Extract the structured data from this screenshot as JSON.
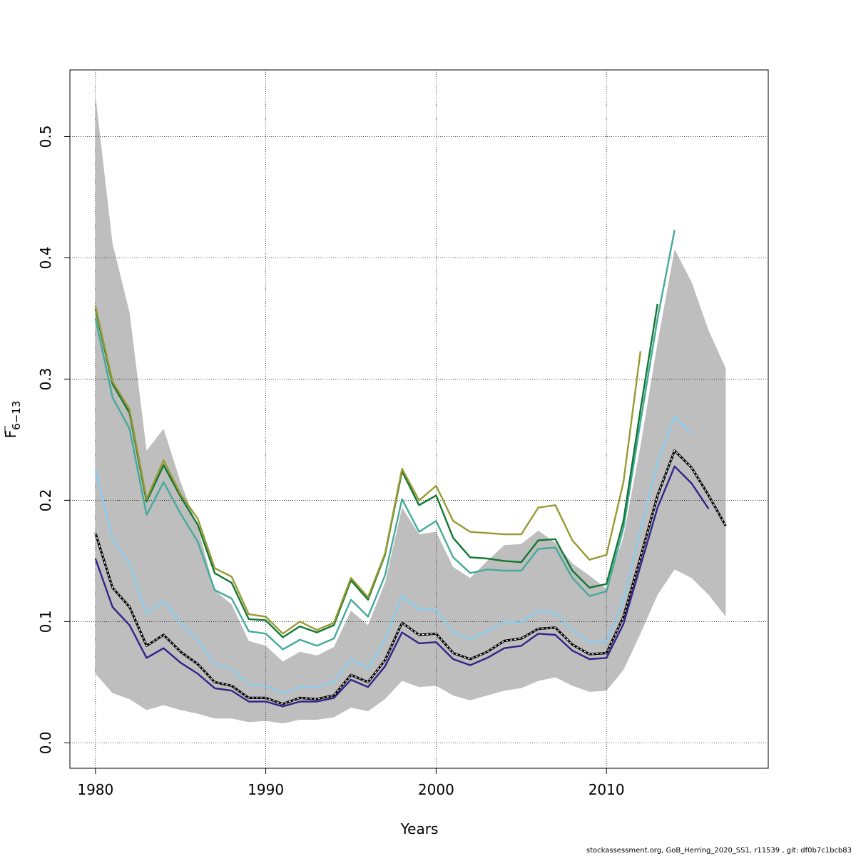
{
  "chart_data": {
    "type": "line",
    "xlabel": "Years",
    "ylabel_base": "F",
    "ylabel_sub": "6−13",
    "xlim": [
      1978.5,
      2019.5
    ],
    "ylim": [
      -0.021,
      0.555
    ],
    "x_ticks": [
      1980,
      1990,
      2000,
      2010
    ],
    "y_ticks": [
      0.0,
      0.1,
      0.2,
      0.3,
      0.4,
      0.5
    ],
    "x_tick_labels": [
      "1980",
      "1990",
      "2000",
      "2010"
    ],
    "y_tick_labels": [
      "0.0",
      "0.1",
      "0.2",
      "0.3",
      "0.4",
      "0.5"
    ],
    "grid": true,
    "confidence_band": {
      "color": "#bebebe",
      "years": [
        1980,
        1981,
        1982,
        1983,
        1984,
        1985,
        1986,
        1987,
        1988,
        1989,
        1990,
        1991,
        1992,
        1993,
        1994,
        1995,
        1996,
        1997,
        1998,
        1999,
        2000,
        2001,
        2002,
        2003,
        2004,
        2005,
        2006,
        2007,
        2008,
        2009,
        2010,
        2011,
        2012,
        2013,
        2014,
        2015,
        2016,
        2017
      ],
      "upper": [
        0.534,
        0.412,
        0.355,
        0.241,
        0.259,
        0.215,
        0.178,
        0.126,
        0.114,
        0.084,
        0.08,
        0.067,
        0.075,
        0.072,
        0.079,
        0.109,
        0.097,
        0.132,
        0.194,
        0.172,
        0.174,
        0.145,
        0.136,
        0.15,
        0.163,
        0.164,
        0.175,
        0.165,
        0.148,
        0.138,
        0.127,
        0.17,
        0.245,
        0.33,
        0.407,
        0.38,
        0.34,
        0.309
      ],
      "lower": [
        0.057,
        0.041,
        0.036,
        0.027,
        0.031,
        0.027,
        0.024,
        0.02,
        0.02,
        0.017,
        0.018,
        0.016,
        0.019,
        0.019,
        0.021,
        0.029,
        0.026,
        0.036,
        0.051,
        0.046,
        0.047,
        0.039,
        0.035,
        0.039,
        0.043,
        0.045,
        0.051,
        0.054,
        0.047,
        0.042,
        0.043,
        0.06,
        0.09,
        0.122,
        0.143,
        0.136,
        0.122,
        0.104
      ]
    },
    "series": [
      {
        "color": "#000000",
        "style": "estimate",
        "start": 1980,
        "values": [
          0.173,
          0.128,
          0.112,
          0.08,
          0.089,
          0.075,
          0.065,
          0.05,
          0.047,
          0.037,
          0.037,
          0.032,
          0.037,
          0.036,
          0.039,
          0.056,
          0.05,
          0.068,
          0.099,
          0.089,
          0.09,
          0.074,
          0.069,
          0.075,
          0.084,
          0.086,
          0.094,
          0.095,
          0.081,
          0.073,
          0.074,
          0.104,
          0.153,
          0.204,
          0.241,
          0.227,
          0.204,
          0.179
        ]
      },
      {
        "color": "#332288",
        "start": 1980,
        "values": [
          0.152,
          0.112,
          0.097,
          0.07,
          0.078,
          0.066,
          0.057,
          0.045,
          0.043,
          0.034,
          0.034,
          0.03,
          0.034,
          0.034,
          0.037,
          0.052,
          0.046,
          0.063,
          0.091,
          0.082,
          0.083,
          0.069,
          0.064,
          0.07,
          0.078,
          0.08,
          0.09,
          0.089,
          0.076,
          0.069,
          0.07,
          0.098,
          0.146,
          0.194,
          0.228,
          0.214,
          0.193
        ]
      },
      {
        "color": "#88ccee",
        "start": 1980,
        "values": [
          0.225,
          0.168,
          0.148,
          0.106,
          0.117,
          0.099,
          0.085,
          0.065,
          0.061,
          0.048,
          0.047,
          0.041,
          0.046,
          0.046,
          0.05,
          0.069,
          0.061,
          0.085,
          0.121,
          0.11,
          0.11,
          0.091,
          0.085,
          0.092,
          0.1,
          0.099,
          0.109,
          0.107,
          0.093,
          0.083,
          0.083,
          0.118,
          0.175,
          0.231,
          0.269,
          0.255
        ]
      },
      {
        "color": "#44aa99",
        "start": 1980,
        "values": [
          0.35,
          0.285,
          0.259,
          0.188,
          0.215,
          0.189,
          0.166,
          0.126,
          0.119,
          0.092,
          0.09,
          0.077,
          0.085,
          0.08,
          0.086,
          0.118,
          0.104,
          0.138,
          0.201,
          0.174,
          0.183,
          0.153,
          0.14,
          0.143,
          0.142,
          0.142,
          0.16,
          0.161,
          0.136,
          0.121,
          0.125,
          0.177,
          0.265,
          0.35,
          0.423
        ]
      },
      {
        "color": "#117733",
        "start": 1980,
        "values": [
          0.358,
          0.296,
          0.272,
          0.199,
          0.229,
          0.203,
          0.18,
          0.14,
          0.132,
          0.102,
          0.101,
          0.087,
          0.096,
          0.091,
          0.097,
          0.134,
          0.118,
          0.155,
          0.224,
          0.196,
          0.204,
          0.169,
          0.153,
          0.152,
          0.15,
          0.149,
          0.167,
          0.168,
          0.142,
          0.128,
          0.131,
          0.183,
          0.275,
          0.362
        ]
      },
      {
        "color": "#999933",
        "start": 1980,
        "values": [
          0.36,
          0.298,
          0.275,
          0.201,
          0.233,
          0.205,
          0.185,
          0.144,
          0.137,
          0.106,
          0.104,
          0.09,
          0.1,
          0.093,
          0.099,
          0.136,
          0.12,
          0.156,
          0.226,
          0.2,
          0.212,
          0.183,
          0.174,
          0.173,
          0.172,
          0.172,
          0.194,
          0.196,
          0.167,
          0.151,
          0.155,
          0.215,
          0.323
        ]
      }
    ]
  },
  "footnote": "stockassessment.org, GoB_Herring_2020_SS1, r11539 , git: df0b7c1bcb83"
}
